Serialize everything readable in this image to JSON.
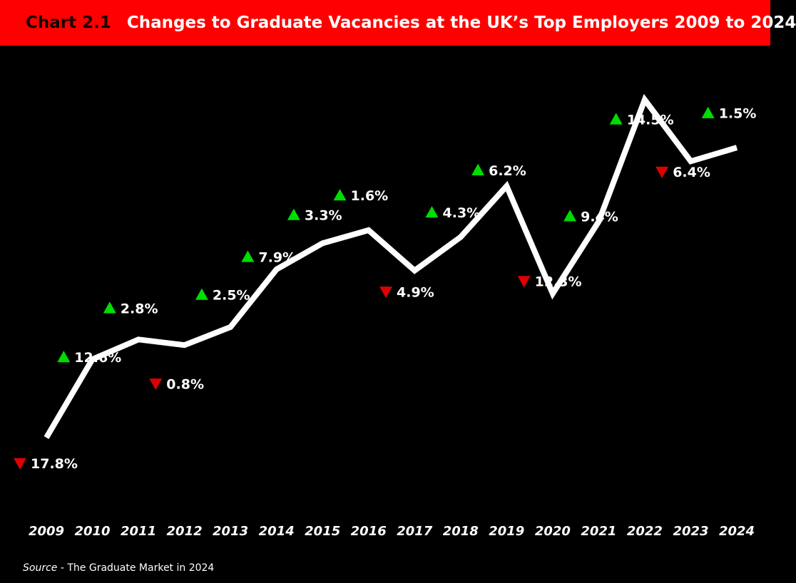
{
  "header": {
    "chart_label": "Chart 2.1",
    "title": "Changes to Graduate Vacancies at the UK’s Top Employers 2009 to 2024"
  },
  "source": {
    "label": "Source",
    "text": " - The Graduate Market in 2024"
  },
  "colors": {
    "header_background": "#ff0000",
    "background": "#000000",
    "line": "#ffffff",
    "increase_marker": "#00dd00",
    "decrease_marker": "#dd0000"
  },
  "chart_data": {
    "type": "line",
    "title": "Changes to Graduate Vacancies at the UK’s Top Employers 2009 to 2024",
    "x": [
      "2009",
      "2010",
      "2011",
      "2012",
      "2013",
      "2014",
      "2015",
      "2016",
      "2017",
      "2018",
      "2019",
      "2020",
      "2021",
      "2022",
      "2023",
      "2024"
    ],
    "series": [
      {
        "values": [
          100.0,
          112.6,
          115.8,
          114.9,
          117.8,
          127.1,
          131.3,
          133.4,
          126.9,
          132.3,
          140.5,
          123.2,
          134.8,
          154.4,
          144.5,
          146.7
        ]
      }
    ],
    "annotations": [
      {
        "x": "2009",
        "label": "17.8%",
        "direction": "down"
      },
      {
        "x": "2010",
        "label": "12.6%",
        "direction": "up"
      },
      {
        "x": "2011",
        "label": "2.8%",
        "direction": "up"
      },
      {
        "x": "2012",
        "label": "0.8%",
        "direction": "down"
      },
      {
        "x": "2013",
        "label": "2.5%",
        "direction": "up"
      },
      {
        "x": "2014",
        "label": "7.9%",
        "direction": "up"
      },
      {
        "x": "2015",
        "label": "3.3%",
        "direction": "up"
      },
      {
        "x": "2016",
        "label": "1.6%",
        "direction": "up"
      },
      {
        "x": "2017",
        "label": "4.9%",
        "direction": "down"
      },
      {
        "x": "2018",
        "label": "4.3%",
        "direction": "up"
      },
      {
        "x": "2019",
        "label": "6.2%",
        "direction": "up"
      },
      {
        "x": "2020",
        "label": "12.3%",
        "direction": "down"
      },
      {
        "x": "2021",
        "label": "9.4%",
        "direction": "up"
      },
      {
        "x": "2022",
        "label": "14.5%",
        "direction": "up"
      },
      {
        "x": "2023",
        "label": "6.4%",
        "direction": "down"
      },
      {
        "x": "2024",
        "label": "1.5%",
        "direction": "up"
      }
    ],
    "xlabel": "",
    "ylabel": "",
    "grid": false,
    "legend": "none"
  }
}
